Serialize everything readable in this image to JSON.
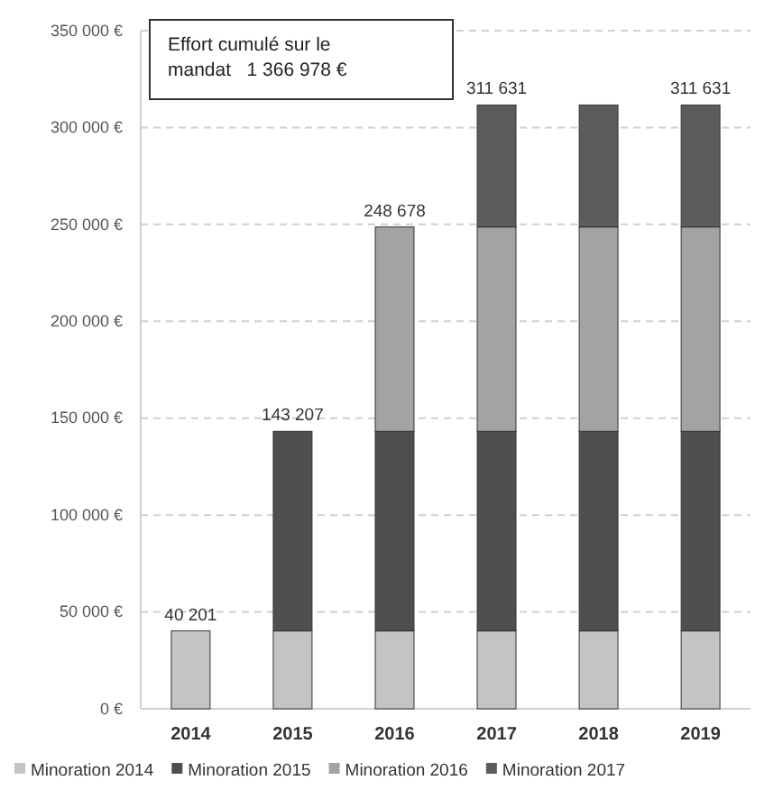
{
  "chart_data": {
    "type": "bar",
    "stacked": true,
    "categories": [
      "2014",
      "2015",
      "2016",
      "2017",
      "2018",
      "2019"
    ],
    "series": [
      {
        "name": "Minoration 2014",
        "color": "#c4c4c4",
        "values": [
          40201,
          40201,
          40201,
          40201,
          40201,
          40201
        ]
      },
      {
        "name": "Minoration 2015",
        "color": "#4f4f4f",
        "values": [
          null,
          103006,
          103006,
          103006,
          103006,
          103006
        ]
      },
      {
        "name": "Minoration 2016",
        "color": "#a3a3a3",
        "values": [
          null,
          null,
          105471,
          105471,
          105471,
          105471
        ]
      },
      {
        "name": "Minoration 2017",
        "color": "#5c5c5c",
        "values": [
          null,
          null,
          null,
          62953,
          62953,
          62953
        ]
      }
    ],
    "totals": [
      "40 201",
      "143 207",
      "248 678",
      "311 631",
      null,
      "311 631"
    ],
    "ylim": [
      0,
      350000
    ],
    "yticks": [
      {
        "value": 0,
        "label": "0 €"
      },
      {
        "value": 50000,
        "label": "50 000 €"
      },
      {
        "value": 100000,
        "label": "100 000 €"
      },
      {
        "value": 150000,
        "label": "150 000 €"
      },
      {
        "value": 200000,
        "label": "200 000 €"
      },
      {
        "value": 250000,
        "label": "250 000 €"
      },
      {
        "value": 300000,
        "label": "300 000 €"
      },
      {
        "value": 350000,
        "label": "350 000 €"
      }
    ],
    "grid": "y",
    "legend": "bottom",
    "annotations": [
      "Effort cumulé sur le mandat   1 366 978 €"
    ]
  }
}
